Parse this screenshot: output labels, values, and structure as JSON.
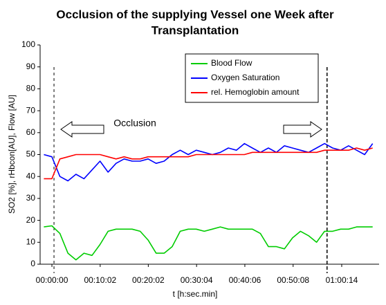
{
  "chart_data": {
    "type": "line",
    "title": [
      "Occlusion of the supplying Vessel one Week after",
      "Transplantation"
    ],
    "x_label": "t [h:sec.min]",
    "y_label": "SO2 [%], rHbcon[AU], Flow [AU]",
    "annotation": "Occlusion",
    "legend": "top",
    "grid": false,
    "xlim": [
      -147,
      4080
    ],
    "ylim": [
      0,
      100
    ],
    "yticks": [
      0,
      10,
      20,
      30,
      40,
      50,
      60,
      70,
      80,
      90,
      100
    ],
    "xticks": [
      {
        "value": 0,
        "label": "00:00:00"
      },
      {
        "value": 602,
        "label": "00:10:02"
      },
      {
        "value": 1202,
        "label": "00:20:02"
      },
      {
        "value": 1804,
        "label": "00:30:04"
      },
      {
        "value": 2406,
        "label": "00:40:06"
      },
      {
        "value": 3008,
        "label": "00:50:08"
      },
      {
        "value": 3614,
        "label": "01:00:14"
      }
    ],
    "markers_x": [
      26,
      3431
    ],
    "x": [
      -100,
      0,
      100,
      200,
      300,
      400,
      500,
      600,
      700,
      800,
      900,
      1000,
      1100,
      1200,
      1300,
      1400,
      1500,
      1600,
      1700,
      1800,
      1900,
      2000,
      2100,
      2200,
      2300,
      2400,
      2500,
      2600,
      2700,
      2800,
      2900,
      3000,
      3100,
      3200,
      3300,
      3400,
      3500,
      3600,
      3700,
      3800,
      3900,
      4000
    ],
    "series": [
      {
        "name": "Blood Flow",
        "color": "#00cc00",
        "values": [
          17,
          17.5,
          14,
          5,
          2,
          5,
          4,
          9,
          15,
          16,
          16,
          16,
          15,
          11,
          5,
          5,
          8,
          15,
          16,
          16,
          15,
          16,
          17,
          16,
          16,
          16,
          16,
          14,
          8,
          8,
          7,
          12,
          15,
          13,
          10,
          15,
          15,
          16,
          16,
          17,
          17,
          17
        ]
      },
      {
        "name": "Oxygen Saturation",
        "color": "#0000ff",
        "values": [
          50,
          49,
          40,
          38,
          41,
          39,
          43,
          47,
          42,
          46,
          48,
          47,
          47,
          48,
          46,
          47,
          50,
          52,
          50,
          52,
          51,
          50,
          51,
          53,
          52,
          55,
          53,
          51,
          53,
          51,
          54,
          53,
          52,
          51,
          53,
          55,
          53,
          52,
          54,
          52,
          50,
          55
        ]
      },
      {
        "name": "rel. Hemoglobin amount",
        "color": "#ff0000",
        "values": [
          39,
          39,
          48,
          49,
          50,
          50,
          50,
          50,
          49,
          48,
          49,
          48,
          48,
          49,
          49,
          49,
          49,
          49,
          49,
          50,
          50,
          50,
          50,
          50,
          50,
          50,
          51,
          51,
          51,
          51,
          51,
          51,
          51,
          51,
          51,
          52,
          52,
          52,
          52,
          53,
          52,
          53
        ]
      }
    ]
  }
}
